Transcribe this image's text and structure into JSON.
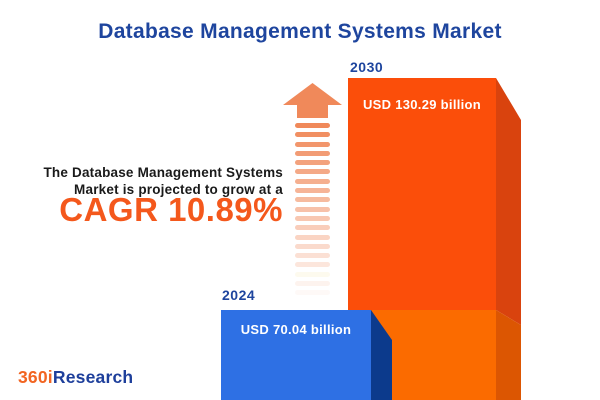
{
  "title": "Database Management Systems Market",
  "subtitle": {
    "line1": "The Database Management Systems",
    "line2": "Market is projected to grow at a",
    "cagr": "CAGR 10.89%"
  },
  "chart_data": {
    "type": "bar",
    "title": "Database Management Systems Market",
    "categories": [
      "2024",
      "2030"
    ],
    "values": [
      70.04,
      130.29
    ],
    "unit": "USD billion",
    "value_labels": [
      "USD 70.04 billion",
      "USD 130.29 billion"
    ],
    "cagr_percent": 10.89,
    "annotation": "The Database Management Systems Market is projected to grow at a CAGR 10.89%",
    "bar_colors": [
      "#2E70E4",
      "#FB4E0A"
    ],
    "legend": "none",
    "grid": false,
    "axes_shown": false
  },
  "bars": {
    "b2024": {
      "year": "2024",
      "value_label": "USD 70.04 billion"
    },
    "b2030": {
      "year": "2030",
      "value_label": "USD 130.29 billion"
    }
  },
  "logo": {
    "part1": "360i",
    "part2": "Research"
  },
  "colors": {
    "title_blue": "#1E459E",
    "accent_orange": "#F4581C",
    "text_dark": "#1A1A1A",
    "bar2030_front": "#FB4E0A",
    "bar2030_front_lower": "#FB6B00",
    "bar2030_side": "#D9430E",
    "bar2030_side_lower": "#DC5602",
    "bar2024_front": "#2E70E4",
    "bar2024_side": "#0C3A8C",
    "arrow": "#F0895A",
    "arrow_yellow": "#F0E08A",
    "logo_orange": "#F26522",
    "logo_blue": "#1E3F9B"
  }
}
